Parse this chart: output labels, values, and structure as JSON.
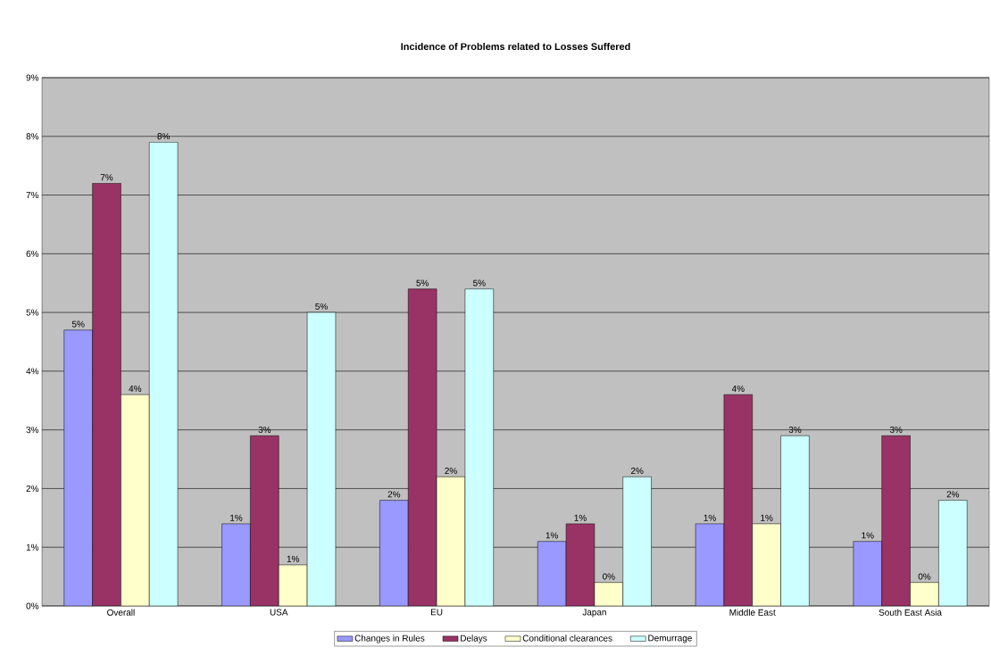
{
  "chart_data": {
    "type": "bar",
    "title": "Incidence of Problems related to Losses Suffered",
    "categories": [
      "Overall",
      "USA",
      "EU",
      "Japan",
      "Middle East",
      "South East Asia"
    ],
    "series": [
      {
        "name": "Changes in Rules",
        "color": "#9999ff",
        "values": [
          4.7,
          1.4,
          1.8,
          1.1,
          1.4,
          1.1
        ],
        "value_labels": [
          "5%",
          "1%",
          "2%",
          "1%",
          "1%",
          "1%"
        ]
      },
      {
        "name": "Delays",
        "color": "#993366",
        "values": [
          7.2,
          2.9,
          5.4,
          1.4,
          3.6,
          2.9
        ],
        "value_labels": [
          "7%",
          "3%",
          "5%",
          "1%",
          "4%",
          "3%"
        ]
      },
      {
        "name": "Conditional clearances",
        "color": "#ffffcc",
        "values": [
          3.6,
          0.7,
          2.2,
          0.4,
          1.4,
          0.4
        ],
        "value_labels": [
          "4%",
          "1%",
          "2%",
          "0%",
          "1%",
          "0%"
        ]
      },
      {
        "name": "Demurrage",
        "color": "#ccffff",
        "values": [
          7.9,
          5.0,
          5.4,
          2.2,
          2.9,
          1.8
        ],
        "value_labels": [
          "8%",
          "5%",
          "5%",
          "2%",
          "3%",
          "2%"
        ]
      }
    ],
    "ylim": [
      0,
      9
    ],
    "yticks": [
      {
        "value": 0,
        "label": "0%"
      },
      {
        "value": 1,
        "label": "1%"
      },
      {
        "value": 2,
        "label": "2%"
      },
      {
        "value": 3,
        "label": "3%"
      },
      {
        "value": 4,
        "label": "4%"
      },
      {
        "value": 5,
        "label": "5%"
      },
      {
        "value": 6,
        "label": "6%"
      },
      {
        "value": 7,
        "label": "7%"
      },
      {
        "value": 8,
        "label": "8%"
      },
      {
        "value": 9,
        "label": "9%"
      }
    ],
    "grid": "y",
    "legend": "bottom"
  }
}
